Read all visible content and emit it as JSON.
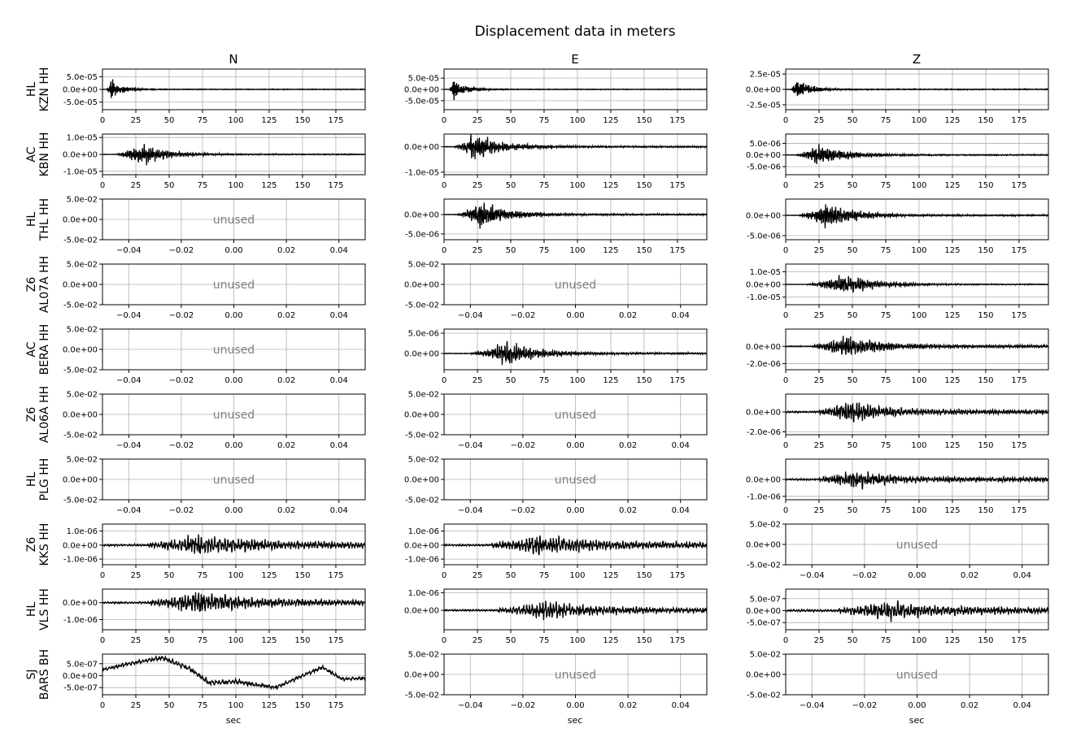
{
  "title": "Displacement data in meters",
  "columns": [
    "N",
    "E",
    "Z"
  ],
  "xlabel": "sec",
  "unused_label": "unused",
  "colors": {
    "trace": "#000000",
    "grid": "#b0b0b0",
    "unused_text": "#808080",
    "axes": "#000000"
  },
  "rows": [
    {
      "station": "HL\nKZN HH"
    },
    {
      "station": "AC\nKBN HH"
    },
    {
      "station": "HL\nTHL HH"
    },
    {
      "station": "Z6\nAL07A HH"
    },
    {
      "station": "AC\nBERA HH"
    },
    {
      "station": "Z6\nAL06A HH"
    },
    {
      "station": "HL\nPLG HH"
    },
    {
      "station": "Z6\nKKS HH"
    },
    {
      "station": "HL\nVLS HH"
    },
    {
      "station": "SJ\nBARS BH"
    }
  ],
  "chart_data": {
    "type": "line",
    "title": "Displacement data in meters",
    "xlabel": "sec",
    "grid": true,
    "grid_rows": 10,
    "grid_cols": 3,
    "used_xlim": [
      0,
      197
    ],
    "used_xticks": [
      0,
      25,
      50,
      75,
      100,
      125,
      150,
      175
    ],
    "unused_xlim": [
      -0.05,
      0.05
    ],
    "unused_xticks": [
      -0.04,
      -0.02,
      0.0,
      0.02,
      0.04
    ],
    "unused_xtick_labels": [
      "−0.04",
      "−0.02",
      "0.00",
      "0.02",
      "0.04"
    ],
    "unused_ylim": [
      -0.05,
      0.05
    ],
    "unused_yticks": [
      -0.05,
      0.0,
      0.05
    ],
    "unused_ytick_labels": [
      "-5.0e-02",
      "0.0e+00",
      "5.0e-02"
    ],
    "panels": [
      {
        "row": 0,
        "col": 0,
        "used": true,
        "ylim": [
          -8e-05,
          8e-05
        ],
        "yticks": [
          -5e-05,
          0,
          5e-05
        ],
        "ytick_labels": [
          "-5.0e-05",
          "0.0e+00",
          "5.0e-05"
        ],
        "trace": {
          "onset": 3,
          "peak": 6,
          "amp": 7.5e-05,
          "decay": 8,
          "noise": 0.03,
          "freq": 1.3,
          "seed": 11
        }
      },
      {
        "row": 0,
        "col": 1,
        "used": true,
        "ylim": [
          -9e-05,
          9e-05
        ],
        "yticks": [
          -5e-05,
          0,
          5e-05
        ],
        "ytick_labels": [
          "-5.0e-05",
          "0.0e+00",
          "5.0e-05"
        ],
        "trace": {
          "onset": 4,
          "peak": 7,
          "amp": 8e-05,
          "decay": 9,
          "noise": 0.03,
          "freq": 1.3,
          "seed": 12
        }
      },
      {
        "row": 0,
        "col": 2,
        "used": true,
        "ylim": [
          -3.3e-05,
          3.3e-05
        ],
        "yticks": [
          -2.5e-05,
          0,
          2.5e-05
        ],
        "ytick_labels": [
          "-2.5e-05",
          "0.0e+00",
          "2.5e-05"
        ],
        "trace": {
          "onset": 4,
          "peak": 8,
          "amp": 3e-05,
          "decay": 10,
          "noise": 0.04,
          "freq": 1.2,
          "seed": 13
        }
      },
      {
        "row": 1,
        "col": 0,
        "used": true,
        "ylim": [
          -1.2e-05,
          1.2e-05
        ],
        "yticks": [
          -1e-05,
          0,
          1e-05
        ],
        "ytick_labels": [
          "-1.0e-05",
          "0.0e+00",
          "1.0e-05"
        ],
        "trace": {
          "onset": 10,
          "peak": 30,
          "amp": 1.15e-05,
          "decay": 18,
          "noise": 0.05,
          "freq": 0.8,
          "seed": 21
        }
      },
      {
        "row": 1,
        "col": 1,
        "used": true,
        "ylim": [
          -1.1e-05,
          5e-06
        ],
        "yticks": [
          -1e-05,
          0
        ],
        "ytick_labels": [
          "-1.0e-05",
          "0.0e+00"
        ],
        "trace": {
          "onset": 8,
          "peak": 22,
          "amp": 9e-06,
          "decay": 20,
          "noise": 0.06,
          "freq": 0.8,
          "seed": 22
        }
      },
      {
        "row": 1,
        "col": 2,
        "used": true,
        "ylim": [
          -8.5e-06,
          9e-06
        ],
        "yticks": [
          -5e-06,
          0,
          5e-06
        ],
        "ytick_labels": [
          "-5.0e-06",
          "0.0e+00",
          "5.0e-06"
        ],
        "trace": {
          "onset": 8,
          "peak": 24,
          "amp": 8e-06,
          "decay": 20,
          "noise": 0.06,
          "freq": 0.8,
          "seed": 23
        }
      },
      {
        "row": 2,
        "col": 0,
        "used": false
      },
      {
        "row": 2,
        "col": 1,
        "used": true,
        "ylim": [
          -6.5e-06,
          4e-06
        ],
        "yticks": [
          -5e-06,
          0
        ],
        "ytick_labels": [
          "-5.0e-06",
          "0.0e+00"
        ],
        "trace": {
          "onset": 10,
          "peak": 28,
          "amp": 6e-06,
          "decay": 20,
          "noise": 0.06,
          "freq": 0.8,
          "seed": 31
        }
      },
      {
        "row": 2,
        "col": 2,
        "used": true,
        "ylim": [
          -6e-06,
          4e-06
        ],
        "yticks": [
          -5e-06,
          0
        ],
        "ytick_labels": [
          "-5.0e-06",
          "0.0e+00"
        ],
        "trace": {
          "onset": 10,
          "peak": 30,
          "amp": 5.5e-06,
          "decay": 20,
          "noise": 0.06,
          "freq": 0.8,
          "seed": 32
        }
      },
      {
        "row": 3,
        "col": 0,
        "used": false
      },
      {
        "row": 3,
        "col": 1,
        "used": false
      },
      {
        "row": 3,
        "col": 2,
        "used": true,
        "ylim": [
          -1.6e-05,
          1.6e-05
        ],
        "yticks": [
          -1e-05,
          0,
          1e-05
        ],
        "ytick_labels": [
          "-1.0e-05",
          "0.0e+00",
          "1.0e-05"
        ],
        "trace": {
          "onset": 15,
          "peak": 45,
          "amp": 1.45e-05,
          "decay": 22,
          "noise": 0.05,
          "freq": 0.7,
          "seed": 41
        }
      },
      {
        "row": 4,
        "col": 0,
        "used": false
      },
      {
        "row": 4,
        "col": 1,
        "used": true,
        "ylim": [
          -4e-06,
          6e-06
        ],
        "yticks": [
          0,
          5e-06
        ],
        "ytick_labels": [
          "0.0e+00",
          "5.0e-06"
        ],
        "trace": {
          "onset": 20,
          "peak": 48,
          "amp": 5e-06,
          "decay": 22,
          "noise": 0.08,
          "freq": 0.7,
          "seed": 51
        }
      },
      {
        "row": 4,
        "col": 2,
        "used": true,
        "ylim": [
          -2.7e-06,
          2e-06
        ],
        "yticks": [
          -2e-06,
          0
        ],
        "ytick_labels": [
          "-2.0e-06",
          "0.0e+00"
        ],
        "trace": {
          "onset": 20,
          "peak": 45,
          "amp": 2.3e-06,
          "decay": 25,
          "noise": 0.12,
          "freq": 0.7,
          "seed": 52
        }
      },
      {
        "row": 5,
        "col": 0,
        "used": false
      },
      {
        "row": 5,
        "col": 1,
        "used": false
      },
      {
        "row": 5,
        "col": 2,
        "used": true,
        "ylim": [
          -2.3e-06,
          1.8e-06
        ],
        "yticks": [
          -2e-06,
          0
        ],
        "ytick_labels": [
          "-2.0e-06",
          "0.0e+00"
        ],
        "trace": {
          "onset": 25,
          "peak": 48,
          "amp": 2e-06,
          "decay": 25,
          "noise": 0.2,
          "freq": 0.6,
          "seed": 61
        }
      },
      {
        "row": 6,
        "col": 0,
        "used": false
      },
      {
        "row": 6,
        "col": 1,
        "used": false
      },
      {
        "row": 6,
        "col": 2,
        "used": true,
        "ylim": [
          -1.2e-06,
          1.2e-06
        ],
        "yticks": [
          -1e-06,
          0
        ],
        "ytick_labels": [
          "-1.0e-06",
          "0.0e+00"
        ],
        "trace": {
          "onset": 25,
          "peak": 50,
          "amp": 1.1e-06,
          "decay": 22,
          "noise": 0.22,
          "freq": 0.6,
          "seed": 71
        }
      },
      {
        "row": 7,
        "col": 0,
        "used": true,
        "ylim": [
          -1.4e-06,
          1.5e-06
        ],
        "yticks": [
          -1e-06,
          0,
          1e-06
        ],
        "ytick_labels": [
          "-1.0e-06",
          "0.0e+00",
          "1.0e-06"
        ],
        "trace": {
          "onset": 35,
          "peak": 72,
          "amp": 1.35e-06,
          "decay": 40,
          "noise": 0.25,
          "freq": 0.5,
          "seed": 81
        }
      },
      {
        "row": 7,
        "col": 1,
        "used": true,
        "ylim": [
          -1.4e-06,
          1.5e-06
        ],
        "yticks": [
          -1e-06,
          0,
          1e-06
        ],
        "ytick_labels": [
          "-1.0e-06",
          "0.0e+00",
          "1.0e-06"
        ],
        "trace": {
          "onset": 35,
          "peak": 72,
          "amp": 1.3e-06,
          "decay": 40,
          "noise": 0.25,
          "freq": 0.5,
          "seed": 82
        }
      },
      {
        "row": 7,
        "col": 2,
        "used": false
      },
      {
        "row": 8,
        "col": 0,
        "used": true,
        "ylim": [
          -1.6e-06,
          8e-07
        ],
        "yticks": [
          -1e-06,
          0
        ],
        "ytick_labels": [
          "-1.0e-06",
          "0.0e+00"
        ],
        "trace": {
          "onset": 35,
          "peak": 70,
          "amp": 1.3e-06,
          "decay": 35,
          "noise": 0.2,
          "freq": 0.5,
          "seed": 91
        }
      },
      {
        "row": 8,
        "col": 1,
        "used": true,
        "ylim": [
          -1.1e-06,
          1.2e-06
        ],
        "yticks": [
          0,
          1e-06
        ],
        "ytick_labels": [
          "0.0e+00",
          "1.0e-06"
        ],
        "trace": {
          "onset": 40,
          "peak": 75,
          "amp": 1e-06,
          "decay": 35,
          "noise": 0.22,
          "freq": 0.5,
          "seed": 92
        }
      },
      {
        "row": 8,
        "col": 2,
        "used": true,
        "ylim": [
          -8e-07,
          9e-07
        ],
        "yticks": [
          -5e-07,
          0,
          5e-07
        ],
        "ytick_labels": [
          "-5.0e-07",
          "0.0e+00",
          "5.0e-07"
        ],
        "trace": {
          "onset": 40,
          "peak": 75,
          "amp": 7e-07,
          "decay": 40,
          "noise": 0.3,
          "freq": 0.5,
          "seed": 93
        }
      },
      {
        "row": 9,
        "col": 0,
        "used": true,
        "ylim": [
          -8e-07,
          9e-07
        ],
        "yticks": [
          -5e-07,
          0,
          5e-07
        ],
        "ytick_labels": [
          "-5.0e-07",
          "0.0e+00",
          "5.0e-07"
        ],
        "trace": {
          "onset": 0,
          "peak": 70,
          "amp": 2e-07,
          "decay": 60,
          "noise": 0.6,
          "freq": 0.4,
          "seed": 101,
          "lowfreq": [
            [
              0,
              2.5e-07
            ],
            [
              20,
              5e-07
            ],
            [
              45,
              7.5e-07
            ],
            [
              65,
              3e-07
            ],
            [
              80,
              -3e-07
            ],
            [
              100,
              -2.5e-07
            ],
            [
              130,
              -5e-07
            ],
            [
              150,
              0
            ],
            [
              165,
              3.5e-07
            ],
            [
              180,
              -1.5e-07
            ],
            [
              197,
              -1e-07
            ]
          ]
        }
      },
      {
        "row": 9,
        "col": 1,
        "used": false
      },
      {
        "row": 9,
        "col": 2,
        "used": false
      }
    ]
  }
}
